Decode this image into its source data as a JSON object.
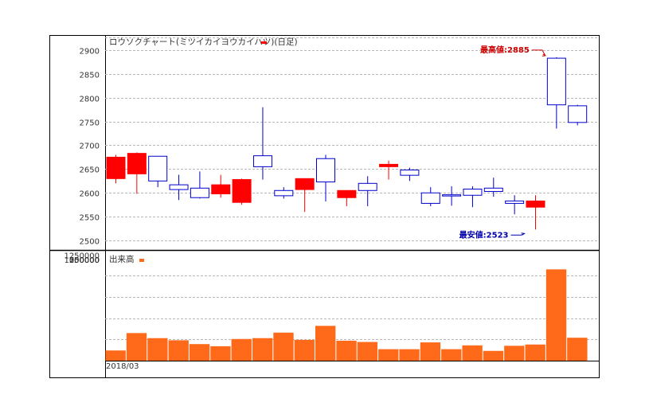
{
  "chart_data": [
    {
      "type": "candlestick",
      "title": "ロウソクチャート(ミツイカイヨウカイハツ)(日足)",
      "legend_color": "#ff0000",
      "up_color": "#0000cc",
      "down_color": "#ff0000",
      "ylim": [
        2480,
        2930
      ],
      "yticks": [
        "2500",
        "2550",
        "2600",
        "2650",
        "2700",
        "2750",
        "2800",
        "2850",
        "2900"
      ],
      "grid": true,
      "candles": [
        {
          "o": 2675,
          "h": 2680,
          "l": 2620,
          "c": 2630
        },
        {
          "o": 2683,
          "h": 2685,
          "l": 2598,
          "c": 2640
        },
        {
          "o": 2625,
          "h": 2677,
          "l": 2612,
          "c": 2677
        },
        {
          "o": 2607,
          "h": 2638,
          "l": 2585,
          "c": 2617
        },
        {
          "o": 2590,
          "h": 2645,
          "l": 2588,
          "c": 2610
        },
        {
          "o": 2617,
          "h": 2638,
          "l": 2590,
          "c": 2598
        },
        {
          "o": 2628,
          "h": 2630,
          "l": 2575,
          "c": 2580
        },
        {
          "o": 2655,
          "h": 2780,
          "l": 2628,
          "c": 2678
        },
        {
          "o": 2594,
          "h": 2612,
          "l": 2588,
          "c": 2605
        },
        {
          "o": 2630,
          "h": 2630,
          "l": 2560,
          "c": 2607
        },
        {
          "o": 2623,
          "h": 2680,
          "l": 2582,
          "c": 2672
        },
        {
          "o": 2605,
          "h": 2605,
          "l": 2572,
          "c": 2590
        },
        {
          "o": 2605,
          "h": 2635,
          "l": 2572,
          "c": 2620
        },
        {
          "o": 2660,
          "h": 2668,
          "l": 2628,
          "c": 2655
        },
        {
          "o": 2637,
          "h": 2653,
          "l": 2625,
          "c": 2648
        },
        {
          "o": 2578,
          "h": 2612,
          "l": 2572,
          "c": 2600
        },
        {
          "o": 2596,
          "h": 2614,
          "l": 2573,
          "c": 2596
        },
        {
          "o": 2595,
          "h": 2614,
          "l": 2570,
          "c": 2608
        },
        {
          "o": 2603,
          "h": 2632,
          "l": 2592,
          "c": 2610
        },
        {
          "o": 2578,
          "h": 2595,
          "l": 2555,
          "c": 2583
        },
        {
          "o": 2583,
          "h": 2595,
          "l": 2523,
          "c": 2570
        },
        {
          "o": 2785,
          "h": 2885,
          "l": 2735,
          "c": 2883
        },
        {
          "o": 2748,
          "h": 2785,
          "l": 2742,
          "c": 2783
        }
      ],
      "annotations": [
        {
          "text": "最高値:2885",
          "color": "#cc0000",
          "candle": 21,
          "value": 2885,
          "position": "above-left"
        },
        {
          "text": "最安値:2523",
          "color": "#0000aa",
          "candle": 20,
          "value": 2523,
          "position": "below-left"
        }
      ]
    },
    {
      "type": "bar",
      "title": "出来高",
      "legend_color": "#ff6a1a",
      "bar_color": "#ff6a1a",
      "ylim": [
        0,
        1200000
      ],
      "yticks": [
        "250000",
        "500000",
        "750000",
        "1000000",
        "1250000"
      ],
      "grid": true,
      "x_tick_labels": [
        "2018/03"
      ],
      "values": [
        120000,
        325000,
        265000,
        240000,
        195000,
        170000,
        255000,
        265000,
        330000,
        245000,
        410000,
        235000,
        220000,
        135000,
        135000,
        215000,
        135000,
        180000,
        115000,
        175000,
        190000,
        1075000,
        270000
      ]
    }
  ]
}
